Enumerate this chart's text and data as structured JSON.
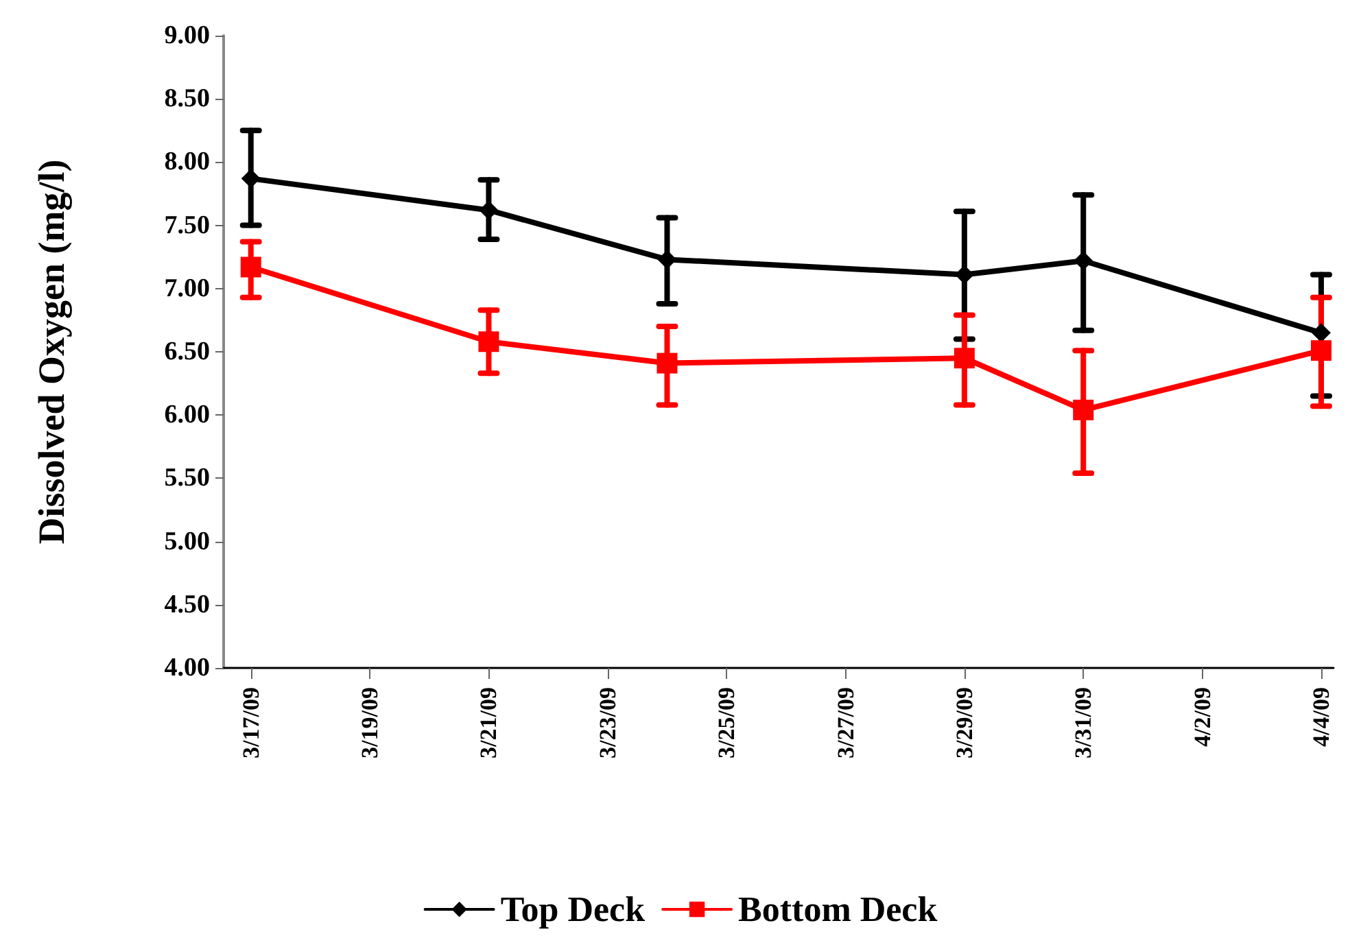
{
  "chart_data": {
    "type": "line",
    "ylabel": "Dissolved Oxygen (mg/l)",
    "x": [
      "--03-17",
      "--03-21",
      "--03-24",
      "--03-29",
      "--03-31",
      "--04-04"
    ],
    "series": [
      {
        "name": "Top Deck",
        "color": "#000000",
        "marker": "diamond",
        "values": [
          7.87,
          7.62,
          7.23,
          7.11,
          7.22,
          6.65
        ],
        "errors": [
          [
            7.5,
            8.25
          ],
          [
            7.39,
            7.86
          ],
          [
            6.88,
            7.56
          ],
          [
            6.6,
            7.61
          ],
          [
            6.67,
            7.74
          ],
          [
            6.15,
            7.11
          ]
        ]
      },
      {
        "name": "Bottom Deck",
        "color": "#ff0000",
        "marker": "square",
        "values": [
          7.17,
          6.58,
          6.41,
          6.45,
          6.04,
          6.51
        ],
        "errors": [
          [
            6.93,
            7.37
          ],
          [
            6.33,
            6.83
          ],
          [
            6.08,
            6.7
          ],
          [
            6.08,
            6.79
          ],
          [
            5.54,
            6.51
          ],
          [
            6.07,
            6.93
          ]
        ]
      }
    ],
    "xlim": [
      "--03-16T13:00",
      "--04-04T05:00"
    ],
    "xticks": [
      {
        "value": "--03-17",
        "label": "3/17/09"
      },
      {
        "value": "--03-19",
        "label": "3/19/09"
      },
      {
        "value": "--03-21",
        "label": "3/21/09"
      },
      {
        "value": "--03-23",
        "label": "3/23/09"
      },
      {
        "value": "--03-25",
        "label": "3/25/09"
      },
      {
        "value": "--03-27",
        "label": "3/27/09"
      },
      {
        "value": "--03-29",
        "label": "3/29/09"
      },
      {
        "value": "--03-31",
        "label": "3/31/09"
      },
      {
        "value": "--04-02",
        "label": "4/2/09"
      },
      {
        "value": "--04-04",
        "label": "4/4/09"
      }
    ],
    "ylim": [
      4,
      9
    ],
    "yticks": [
      {
        "value": 4,
        "label": "4.00"
      },
      {
        "value": 4.5,
        "label": "4.50"
      },
      {
        "value": 5,
        "label": "5.00"
      },
      {
        "value": 5.5,
        "label": "5.50"
      },
      {
        "value": 6,
        "label": "6.00"
      },
      {
        "value": 6.5,
        "label": "6.50"
      },
      {
        "value": 7,
        "label": "7.00"
      },
      {
        "value": 7.5,
        "label": "7.50"
      },
      {
        "value": 8,
        "label": "8.00"
      },
      {
        "value": 8.5,
        "label": "8.50"
      },
      {
        "value": 9,
        "label": "9.00"
      }
    ],
    "legend": "bottom",
    "grid": false,
    "line_style": "solid"
  }
}
